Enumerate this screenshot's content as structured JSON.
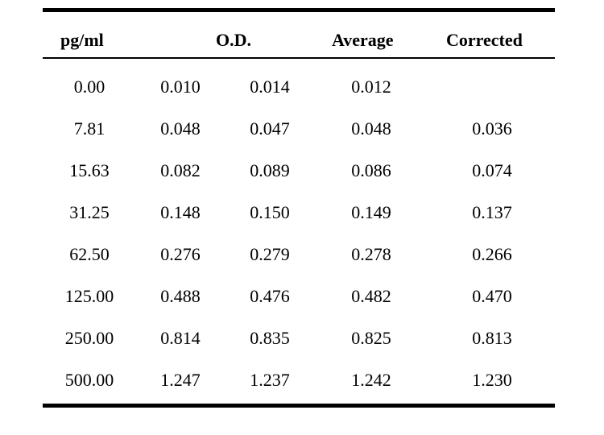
{
  "table": {
    "headers": {
      "concentration": "pg/ml",
      "od": "O.D.",
      "average": "Average",
      "corrected": "Corrected"
    },
    "rows": [
      [
        "0.00",
        "0.010",
        "0.014",
        "0.012",
        ""
      ],
      [
        "7.81",
        "0.048",
        "0.047",
        "0.048",
        "0.036"
      ],
      [
        "15.63",
        "0.082",
        "0.089",
        "0.086",
        "0.074"
      ],
      [
        "31.25",
        "0.148",
        "0.150",
        "0.149",
        "0.137"
      ],
      [
        "62.50",
        "0.276",
        "0.279",
        "0.278",
        "0.266"
      ],
      [
        "125.00",
        "0.488",
        "0.476",
        "0.482",
        "0.470"
      ],
      [
        "250.00",
        "0.814",
        "0.835",
        "0.825",
        "0.813"
      ],
      [
        "500.00",
        "1.247",
        "1.237",
        "1.242",
        "1.230"
      ]
    ]
  }
}
